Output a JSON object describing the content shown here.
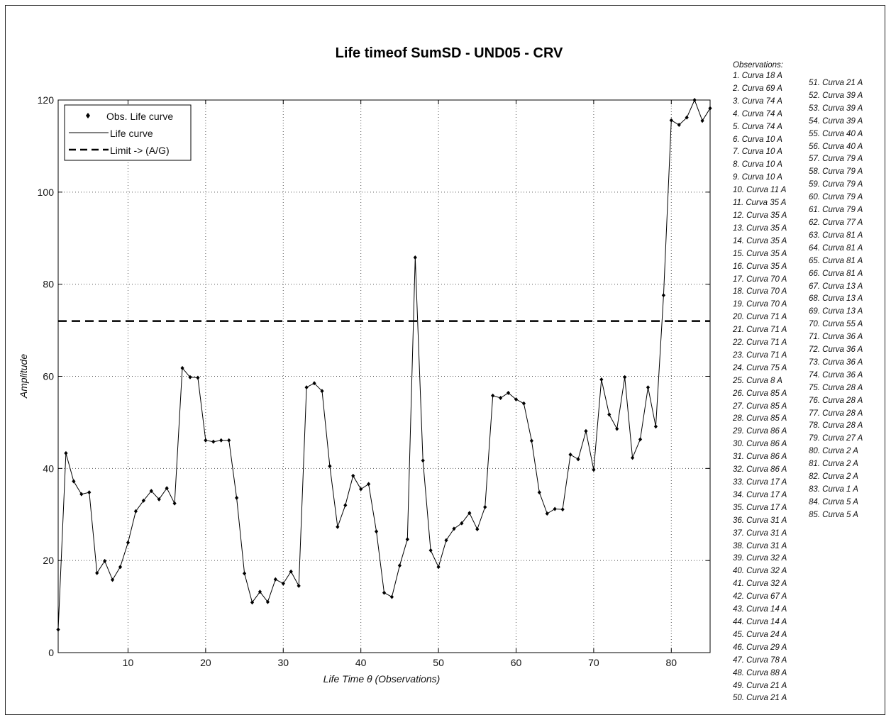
{
  "chart_data": {
    "type": "line",
    "title": "Life timeof SumSD - UND05 - CRV",
    "xlabel": "Life Time θ (Observations)",
    "ylabel": "Amplitude",
    "xlim": [
      1,
      85
    ],
    "ylim": [
      0,
      120
    ],
    "xticks": [
      10,
      20,
      30,
      40,
      50,
      60,
      70,
      80
    ],
    "yticks": [
      0,
      20,
      40,
      60,
      80,
      100,
      120
    ],
    "grid": true,
    "legend_position": "top-left",
    "legend": [
      "Obs. Life curve",
      "Life curve",
      "Limit -> (A/G)"
    ],
    "series": [
      {
        "name": "Obs. Life curve",
        "x": [
          1,
          2,
          3,
          4,
          5,
          6,
          7,
          8,
          9,
          10,
          11,
          12,
          13,
          14,
          15,
          16,
          17,
          18,
          19,
          20,
          21,
          22,
          23,
          24,
          25,
          26,
          27,
          28,
          29,
          30,
          31,
          32,
          33,
          34,
          35,
          36,
          37,
          38,
          39,
          40,
          41,
          42,
          43,
          44,
          45,
          46,
          47,
          48,
          49,
          50,
          51,
          52,
          53,
          54,
          55,
          56,
          57,
          58,
          59,
          60,
          61,
          62,
          63,
          64,
          65,
          66,
          67,
          68,
          69,
          70,
          71,
          72,
          73,
          74,
          75,
          76,
          77,
          78,
          79,
          80,
          81,
          82,
          83,
          84,
          85
        ],
        "values": [
          5,
          43.3,
          37.2,
          34.4,
          34.8,
          17.3,
          19.9,
          15.8,
          18.6,
          23.9,
          30.7,
          33,
          35.1,
          33.3,
          35.7,
          32.4,
          61.8,
          59.8,
          59.7,
          46.1,
          45.8,
          46.1,
          46.1,
          33.6,
          17.2,
          10.9,
          13.2,
          11,
          15.9,
          15,
          17.6,
          14.5,
          57.6,
          58.5,
          56.8,
          40.5,
          27.3,
          32,
          38.4,
          35.5,
          36.6,
          26.3,
          13,
          12.1,
          18.9,
          24.6,
          85.8,
          41.7,
          22.2,
          18.6,
          24.4,
          26.9,
          28.1,
          30.3,
          26.8,
          31.6,
          55.8,
          55.3,
          56.4,
          55,
          54.1,
          46,
          34.8,
          30.2,
          31.2,
          31.1,
          43,
          42,
          48.1,
          39.7,
          59.3,
          51.7,
          48.6,
          59.8,
          42.3,
          46.3,
          57.6,
          49.1,
          77.6,
          115.6,
          114.6,
          116.2,
          120,
          115.5,
          118.2
        ]
      },
      {
        "name": "Limit -> (A/G)",
        "values": [
          72
        ],
        "style": "dashed"
      }
    ],
    "colors": {
      "line": "#000000",
      "grid": "#555555"
    }
  },
  "observations": {
    "title": "Observations:",
    "items": [
      "1. Curva 18 A",
      "2. Curva 69 A",
      "3. Curva 74 A",
      "4. Curva 74 A",
      "5. Curva 74 A",
      "6. Curva 10 A",
      "7. Curva 10 A",
      "8. Curva 10 A",
      "9. Curva 10 A",
      "10. Curva 11 A",
      "11. Curva 35 A",
      "12. Curva 35 A",
      "13. Curva 35 A",
      "14. Curva 35 A",
      "15. Curva 35 A",
      "16. Curva 35 A",
      "17. Curva 70 A",
      "18. Curva 70 A",
      "19. Curva 70 A",
      "20. Curva 71 A",
      "21. Curva 71 A",
      "22. Curva 71 A",
      "23. Curva 71 A",
      "24. Curva 75 A",
      "25. Curva 8 A",
      "26. Curva 85 A",
      "27. Curva 85 A",
      "28. Curva 85 A",
      "29. Curva 86 A",
      "30. Curva 86 A",
      "31. Curva 86 A",
      "32. Curva 86 A",
      "33. Curva 17 A",
      "34. Curva 17 A",
      "35. Curva 17 A",
      "36. Curva 31 A",
      "37. Curva 31 A",
      "38. Curva 31 A",
      "39. Curva 32 A",
      "40. Curva 32 A",
      "41. Curva 32 A",
      "42. Curva 67 A",
      "43. Curva 14 A",
      "44. Curva 14 A",
      "45. Curva 24 A",
      "46. Curva 29 A",
      "47. Curva 78 A",
      "48. Curva 88 A",
      "49. Curva 21 A",
      "50. Curva 21 A",
      "51. Curva 21 A",
      "52. Curva 39 A",
      "53. Curva 39 A",
      "54. Curva 39 A",
      "55. Curva 40 A",
      "56. Curva 40 A",
      "57. Curva 79 A",
      "58. Curva 79 A",
      "59. Curva 79 A",
      "60. Curva 79 A",
      "61. Curva 79 A",
      "62. Curva 77 A",
      "63. Curva 81 A",
      "64. Curva 81 A",
      "65. Curva 81 A",
      "66. Curva 81 A",
      "67. Curva 13 A",
      "68. Curva 13 A",
      "69. Curva 13 A",
      "70. Curva 55 A",
      "71. Curva 36 A",
      "72. Curva 36 A",
      "73. Curva 36 A",
      "74. Curva 36 A",
      "75. Curva 28 A",
      "76. Curva 28 A",
      "77. Curva 28 A",
      "78. Curva 28 A",
      "79. Curva 27 A",
      "80. Curva 2 A",
      "81. Curva 2 A",
      "82. Curva 2 A",
      "83. Curva 1 A",
      "84. Curva 5 A",
      "85. Curva 5 A"
    ]
  }
}
